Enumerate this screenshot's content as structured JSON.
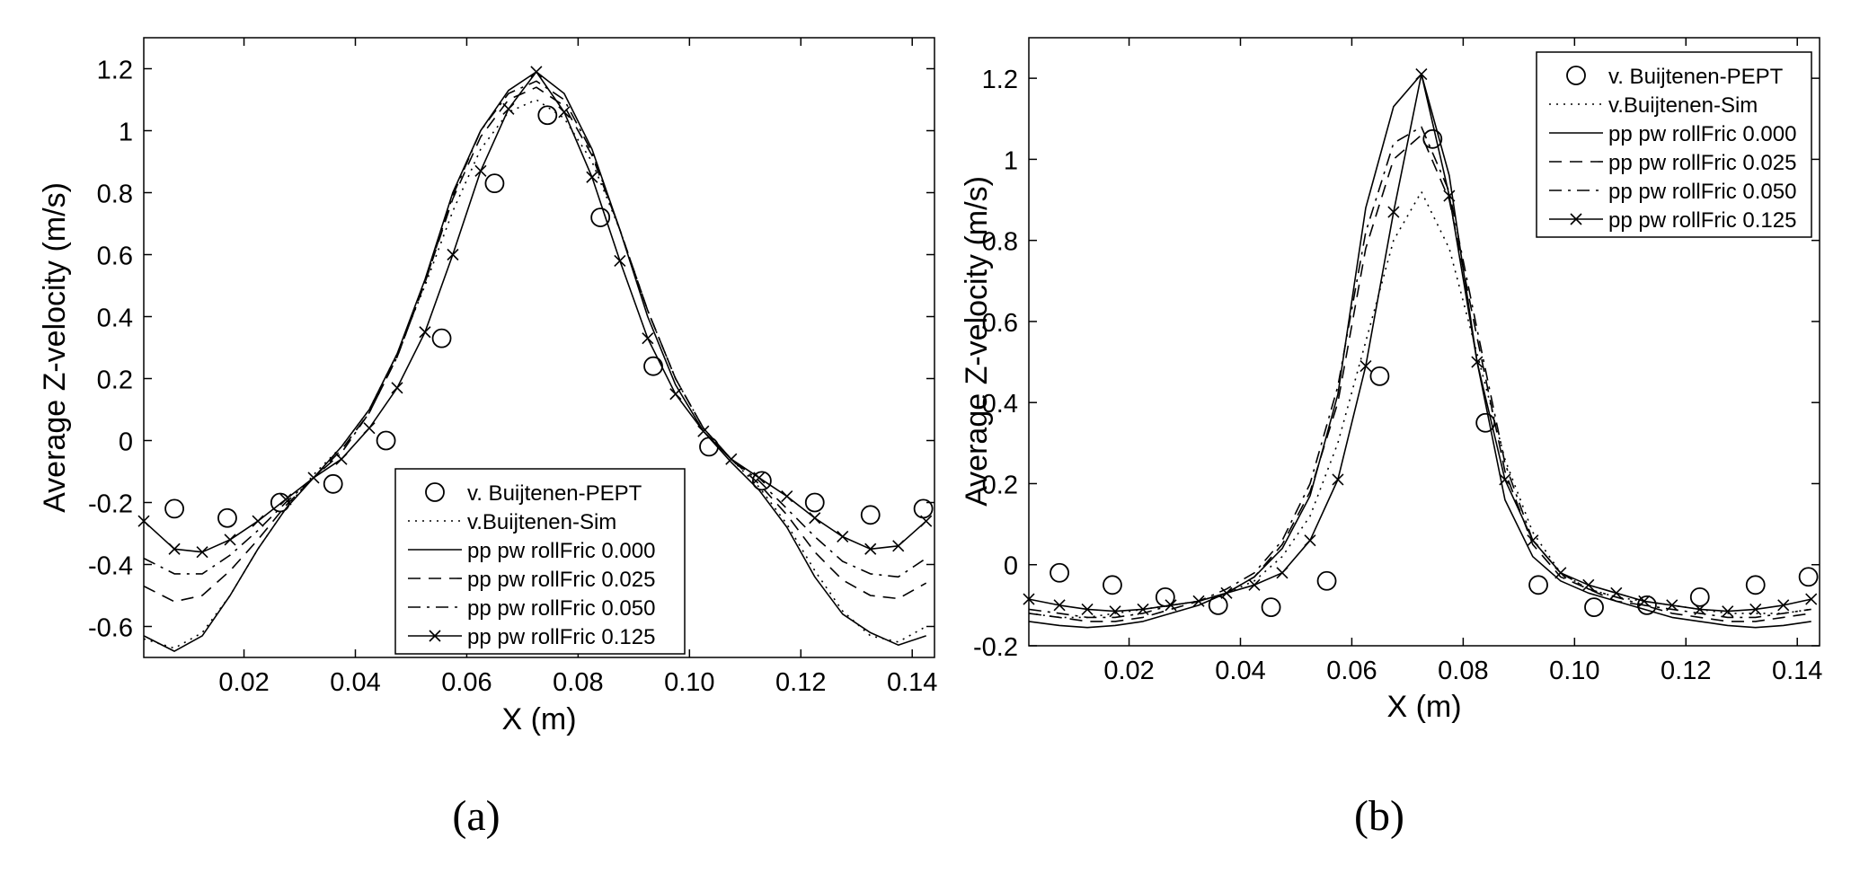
{
  "chart_data": [
    {
      "type": "line",
      "panel_label": "(a)",
      "xlabel": "X (m)",
      "ylabel": "Average Z-velocity (m/s)",
      "xlim": [
        0.002,
        0.144
      ],
      "ylim": [
        -0.7,
        1.3
      ],
      "xticks": [
        0.02,
        0.04,
        0.06,
        0.08,
        0.1,
        0.12,
        0.14
      ],
      "xtick_labels": [
        "0.02",
        "0.04",
        "0.06",
        "0.08",
        "0.10",
        "0.12",
        "0.14"
      ],
      "yticks": [
        -0.6,
        -0.4,
        -0.2,
        0,
        0.2,
        0.4,
        0.6,
        0.8,
        1,
        1.2
      ],
      "ytick_labels": [
        "-0.6",
        "-0.4",
        "-0.2",
        "0",
        "0.2",
        "0.4",
        "0.6",
        "0.8",
        "1",
        "1.2"
      ],
      "legend_position": "bottom-right",
      "series": [
        {
          "name": "v. Buijtenen-PEPT",
          "style": "circle",
          "x": [
            0.0075,
            0.017,
            0.0265,
            0.036,
            0.0455,
            0.0555,
            0.065,
            0.0745,
            0.084,
            0.0935,
            0.1035,
            0.113,
            0.1225,
            0.1325,
            0.142
          ],
          "y": [
            -0.22,
            -0.25,
            -0.2,
            -0.14,
            0.0,
            0.33,
            0.83,
            1.05,
            0.72,
            0.24,
            -0.02,
            -0.13,
            -0.2,
            -0.24,
            -0.22
          ]
        },
        {
          "name": "v.Buijtenen-Sim",
          "style": "dotted",
          "x": [
            0.002,
            0.0075,
            0.0125,
            0.0175,
            0.0225,
            0.0275,
            0.0325,
            0.0375,
            0.0425,
            0.0475,
            0.0525,
            0.0575,
            0.0625,
            0.0675,
            0.0725,
            0.0775,
            0.0825,
            0.0875,
            0.0925,
            0.0975,
            0.1025,
            0.1075,
            0.1125,
            0.1175,
            0.1225,
            0.1275,
            0.1325,
            0.1375,
            0.1425
          ],
          "y": [
            -0.64,
            -0.67,
            -0.62,
            -0.5,
            -0.35,
            -0.22,
            -0.11,
            -0.02,
            0.1,
            0.28,
            0.5,
            0.74,
            0.94,
            1.06,
            1.1,
            1.04,
            0.9,
            0.68,
            0.42,
            0.2,
            0.04,
            -0.06,
            -0.15,
            -0.27,
            -0.42,
            -0.55,
            -0.63,
            -0.65,
            -0.6
          ]
        },
        {
          "name": "pp pw rollFric 0.000",
          "style": "solid",
          "x": [
            0.002,
            0.0075,
            0.0125,
            0.0175,
            0.0225,
            0.0275,
            0.0325,
            0.0375,
            0.0425,
            0.0475,
            0.0525,
            0.0575,
            0.0625,
            0.0675,
            0.0725,
            0.0775,
            0.0825,
            0.0875,
            0.0925,
            0.0975,
            0.1025,
            0.1075,
            0.1125,
            0.1175,
            0.1225,
            0.1275,
            0.1325,
            0.1375,
            0.1425
          ],
          "y": [
            -0.63,
            -0.68,
            -0.63,
            -0.5,
            -0.35,
            -0.22,
            -0.12,
            -0.02,
            0.1,
            0.28,
            0.52,
            0.8,
            1.0,
            1.13,
            1.19,
            1.12,
            0.94,
            0.68,
            0.4,
            0.18,
            0.03,
            -0.07,
            -0.16,
            -0.28,
            -0.44,
            -0.56,
            -0.62,
            -0.66,
            -0.63
          ]
        },
        {
          "name": "pp pw rollFric 0.025",
          "style": "dashed",
          "x": [
            0.002,
            0.0075,
            0.0125,
            0.0175,
            0.0225,
            0.0275,
            0.0325,
            0.0375,
            0.0425,
            0.0475,
            0.0525,
            0.0575,
            0.0625,
            0.0675,
            0.0725,
            0.0775,
            0.0825,
            0.0875,
            0.0925,
            0.0975,
            0.1025,
            0.1075,
            0.1125,
            0.1175,
            0.1225,
            0.1275,
            0.1325,
            0.1375,
            0.1425
          ],
          "y": [
            -0.47,
            -0.52,
            -0.5,
            -0.42,
            -0.32,
            -0.21,
            -0.12,
            -0.03,
            0.09,
            0.27,
            0.51,
            0.78,
            0.98,
            1.1,
            1.14,
            1.08,
            0.92,
            0.68,
            0.42,
            0.2,
            0.04,
            -0.06,
            -0.14,
            -0.24,
            -0.36,
            -0.45,
            -0.5,
            -0.51,
            -0.46
          ]
        },
        {
          "name": "pp pw rollFric 0.050",
          "style": "dashdot",
          "x": [
            0.002,
            0.0075,
            0.0125,
            0.0175,
            0.0225,
            0.0275,
            0.0325,
            0.0375,
            0.0425,
            0.0475,
            0.0525,
            0.0575,
            0.0625,
            0.0675,
            0.0725,
            0.0775,
            0.0825,
            0.0875,
            0.0925,
            0.0975,
            0.1025,
            0.1075,
            0.1125,
            0.1175,
            0.1225,
            0.1275,
            0.1325,
            0.1375,
            0.1425
          ],
          "y": [
            -0.38,
            -0.43,
            -0.43,
            -0.37,
            -0.29,
            -0.2,
            -0.12,
            -0.04,
            0.09,
            0.27,
            0.51,
            0.79,
            1.0,
            1.12,
            1.16,
            1.1,
            0.93,
            0.68,
            0.42,
            0.2,
            0.04,
            -0.06,
            -0.13,
            -0.22,
            -0.31,
            -0.39,
            -0.43,
            -0.44,
            -0.38
          ]
        },
        {
          "name": "pp pw rollFric 0.125",
          "style": "solid-x",
          "x": [
            0.002,
            0.0075,
            0.0125,
            0.0175,
            0.0225,
            0.0275,
            0.0325,
            0.0375,
            0.0425,
            0.0475,
            0.0525,
            0.0575,
            0.0625,
            0.0675,
            0.0725,
            0.0775,
            0.0825,
            0.0875,
            0.0925,
            0.0975,
            0.1025,
            0.1075,
            0.1125,
            0.1175,
            0.1225,
            0.1275,
            0.1325,
            0.1375,
            0.1425
          ],
          "y": [
            -0.26,
            -0.35,
            -0.36,
            -0.32,
            -0.26,
            -0.19,
            -0.12,
            -0.06,
            0.04,
            0.17,
            0.35,
            0.6,
            0.87,
            1.07,
            1.19,
            1.06,
            0.85,
            0.58,
            0.33,
            0.15,
            0.03,
            -0.06,
            -0.12,
            -0.18,
            -0.25,
            -0.31,
            -0.35,
            -0.34,
            -0.26
          ]
        }
      ]
    },
    {
      "type": "line",
      "panel_label": "(b)",
      "xlabel": "X (m)",
      "ylabel": "Average Z-velocity (m/s)",
      "xlim": [
        0.002,
        0.144
      ],
      "ylim": [
        -0.2,
        1.3
      ],
      "xticks": [
        0.02,
        0.04,
        0.06,
        0.08,
        0.1,
        0.12,
        0.14
      ],
      "xtick_labels": [
        "0.02",
        "0.04",
        "0.06",
        "0.08",
        "0.10",
        "0.12",
        "0.14"
      ],
      "yticks": [
        -0.2,
        0,
        0.2,
        0.4,
        0.6,
        0.8,
        1,
        1.2
      ],
      "ytick_labels": [
        "-0.2",
        "0",
        "0.2",
        "0.4",
        "0.6",
        "0.8",
        "1",
        "1.2"
      ],
      "legend_position": "top-right",
      "series": [
        {
          "name": "v. Buijtenen-PEPT",
          "style": "circle",
          "x": [
            0.0075,
            0.017,
            0.0265,
            0.036,
            0.0455,
            0.0555,
            0.065,
            0.0745,
            0.084,
            0.0935,
            0.1035,
            0.113,
            0.1225,
            0.1325,
            0.142
          ],
          "y": [
            -0.02,
            -0.05,
            -0.08,
            -0.1,
            -0.105,
            -0.04,
            0.465,
            1.05,
            0.35,
            -0.05,
            -0.105,
            -0.1,
            -0.08,
            -0.05,
            -0.03
          ]
        },
        {
          "name": "v.Buijtenen-Sim",
          "style": "dotted",
          "x": [
            0.002,
            0.0075,
            0.0125,
            0.0175,
            0.0225,
            0.0275,
            0.0325,
            0.0375,
            0.0425,
            0.0475,
            0.0525,
            0.0575,
            0.0625,
            0.0675,
            0.0725,
            0.0775,
            0.0825,
            0.0875,
            0.0925,
            0.0975,
            0.1025,
            0.1075,
            0.1125,
            0.1175,
            0.1225,
            0.1275,
            0.1325,
            0.1375,
            0.1425
          ],
          "y": [
            -0.12,
            -0.13,
            -0.13,
            -0.12,
            -0.11,
            -0.1,
            -0.09,
            -0.07,
            -0.04,
            0.02,
            0.12,
            0.3,
            0.55,
            0.8,
            0.92,
            0.78,
            0.52,
            0.26,
            0.08,
            -0.02,
            -0.06,
            -0.08,
            -0.09,
            -0.1,
            -0.11,
            -0.12,
            -0.12,
            -0.12,
            -0.11
          ]
        },
        {
          "name": "pp pw rollFric 0.000",
          "style": "solid",
          "x": [
            0.002,
            0.0075,
            0.0125,
            0.0175,
            0.0225,
            0.0275,
            0.0325,
            0.0375,
            0.0425,
            0.0475,
            0.0525,
            0.0575,
            0.0625,
            0.0675,
            0.0725,
            0.0775,
            0.0825,
            0.0875,
            0.0925,
            0.0975,
            0.1025,
            0.1075,
            0.1125,
            0.1175,
            0.1225,
            0.1275,
            0.1325,
            0.1375,
            0.1425
          ],
          "y": [
            -0.14,
            -0.15,
            -0.155,
            -0.15,
            -0.14,
            -0.12,
            -0.1,
            -0.07,
            -0.03,
            0.04,
            0.17,
            0.42,
            0.88,
            1.13,
            1.21,
            0.96,
            0.5,
            0.16,
            0.02,
            -0.04,
            -0.07,
            -0.09,
            -0.11,
            -0.13,
            -0.14,
            -0.15,
            -0.155,
            -0.15,
            -0.14
          ]
        },
        {
          "name": "pp pw rollFric 0.025",
          "style": "dashed",
          "x": [
            0.002,
            0.0075,
            0.0125,
            0.0175,
            0.0225,
            0.0275,
            0.0325,
            0.0375,
            0.0425,
            0.0475,
            0.0525,
            0.0575,
            0.0625,
            0.0675,
            0.0725,
            0.0775,
            0.0825,
            0.0875,
            0.0925,
            0.0975,
            0.1025,
            0.1075,
            0.1125,
            0.1175,
            0.1225,
            0.1275,
            0.1325,
            0.1375,
            0.1425
          ],
          "y": [
            -0.12,
            -0.13,
            -0.14,
            -0.14,
            -0.13,
            -0.11,
            -0.09,
            -0.07,
            -0.03,
            0.05,
            0.18,
            0.4,
            0.78,
            1.0,
            1.06,
            0.9,
            0.56,
            0.23,
            0.05,
            -0.03,
            -0.06,
            -0.09,
            -0.1,
            -0.12,
            -0.13,
            -0.14,
            -0.14,
            -0.13,
            -0.12
          ]
        },
        {
          "name": "pp pw rollFric 0.050",
          "style": "dashdot",
          "x": [
            0.002,
            0.0075,
            0.0125,
            0.0175,
            0.0225,
            0.0275,
            0.0325,
            0.0375,
            0.0425,
            0.0475,
            0.0525,
            0.0575,
            0.0625,
            0.0675,
            0.0725,
            0.0775,
            0.0825,
            0.0875,
            0.0925,
            0.0975,
            0.1025,
            0.1075,
            0.1125,
            0.1175,
            0.1225,
            0.1275,
            0.1325,
            0.1375,
            0.1425
          ],
          "y": [
            -0.11,
            -0.12,
            -0.13,
            -0.13,
            -0.12,
            -0.1,
            -0.09,
            -0.06,
            -0.02,
            0.06,
            0.2,
            0.44,
            0.82,
            1.04,
            1.08,
            0.92,
            0.58,
            0.25,
            0.06,
            -0.02,
            -0.06,
            -0.08,
            -0.1,
            -0.11,
            -0.12,
            -0.13,
            -0.13,
            -0.12,
            -0.11
          ]
        },
        {
          "name": "pp pw rollFric 0.125",
          "style": "solid-x",
          "x": [
            0.002,
            0.0075,
            0.0125,
            0.0175,
            0.0225,
            0.0275,
            0.0325,
            0.0375,
            0.0425,
            0.0475,
            0.0525,
            0.0575,
            0.0625,
            0.0675,
            0.0725,
            0.0775,
            0.0825,
            0.0875,
            0.0925,
            0.0975,
            0.1025,
            0.1075,
            0.1125,
            0.1175,
            0.1225,
            0.1275,
            0.1325,
            0.1375,
            0.1425
          ],
          "y": [
            -0.085,
            -0.1,
            -0.11,
            -0.115,
            -0.11,
            -0.1,
            -0.09,
            -0.07,
            -0.05,
            -0.02,
            0.06,
            0.21,
            0.49,
            0.87,
            1.21,
            0.91,
            0.5,
            0.21,
            0.06,
            -0.02,
            -0.05,
            -0.07,
            -0.09,
            -0.1,
            -0.11,
            -0.115,
            -0.11,
            -0.1,
            -0.085
          ]
        }
      ]
    }
  ]
}
